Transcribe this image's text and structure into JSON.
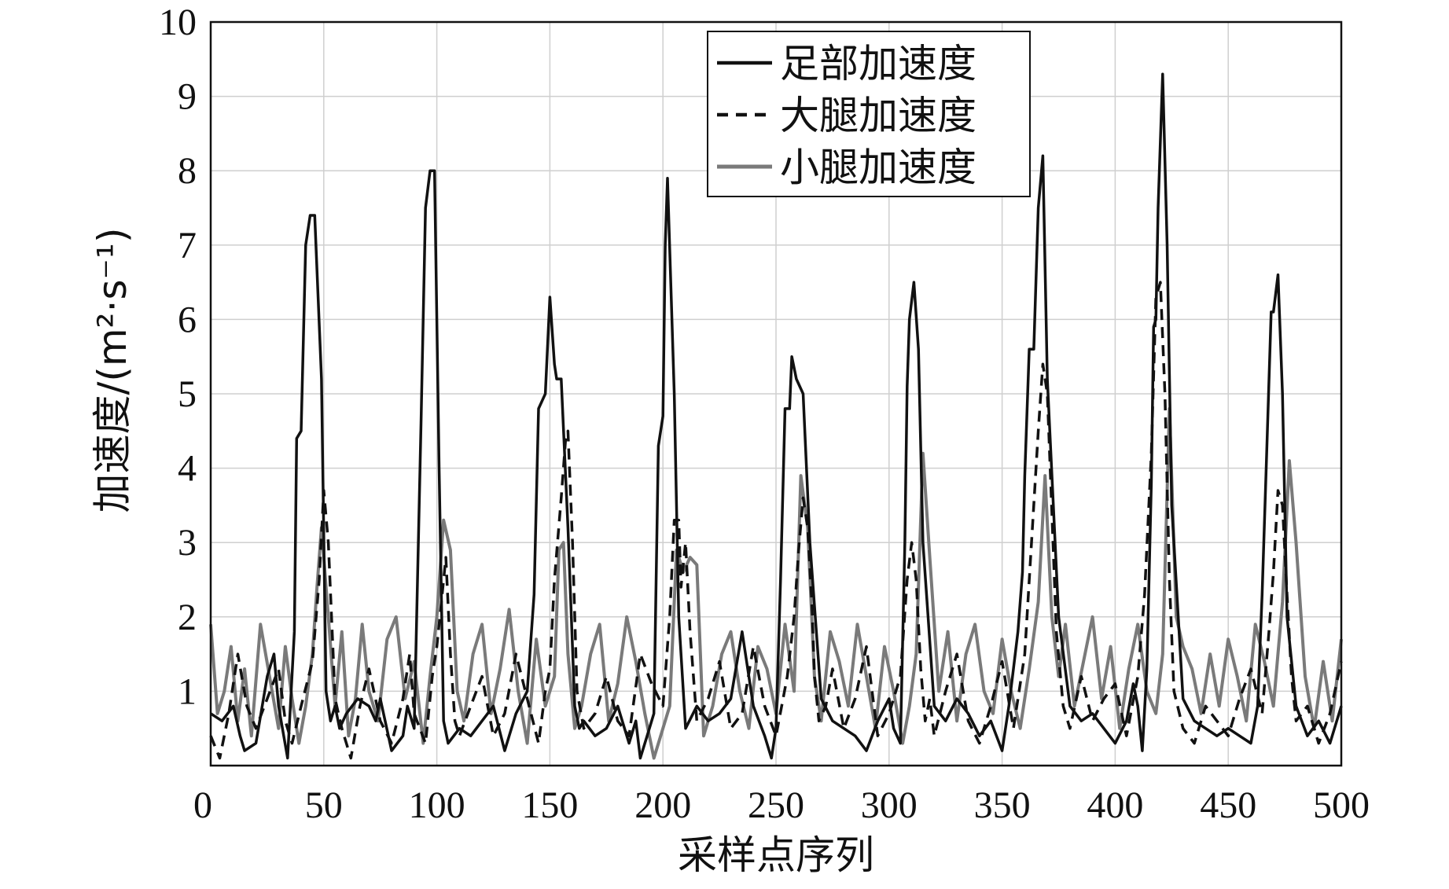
{
  "chart_data": {
    "type": "line",
    "xlabel": "采样点序列",
    "ylabel": "加速度/(m²·s⁻¹)",
    "xlim": [
      0,
      500
    ],
    "ylim": [
      0,
      10
    ],
    "xticks": [
      "0",
      "50",
      "100",
      "150",
      "200",
      "250",
      "300",
      "350",
      "400",
      "450",
      "500"
    ],
    "yticks": [
      "1",
      "2",
      "3",
      "4",
      "5",
      "6",
      "7",
      "8",
      "9",
      "10"
    ],
    "grid": true,
    "legend_position": "top-right",
    "series": [
      {
        "name": "足部加速度",
        "style": "solid",
        "color": "#111111",
        "x": [
          0,
          5,
          10,
          13,
          15,
          20,
          25,
          28,
          30,
          34,
          37,
          38,
          40,
          42,
          44,
          46,
          49,
          51,
          53,
          55,
          57,
          60,
          65,
          70,
          73,
          75,
          80,
          85,
          87,
          90,
          93,
          95,
          97,
          98,
          99,
          101,
          103,
          105,
          110,
          115,
          120,
          125,
          130,
          135,
          140,
          143,
          145,
          148,
          150,
          152,
          153,
          155,
          158,
          161,
          163,
          165,
          170,
          175,
          180,
          185,
          188,
          190,
          193,
          196,
          198,
          200,
          201,
          202,
          205,
          207,
          210,
          215,
          220,
          225,
          230,
          235,
          240,
          245,
          248,
          250,
          252,
          254,
          256,
          257,
          259,
          262,
          265,
          270,
          275,
          280,
          285,
          290,
          295,
          300,
          302,
          305,
          307,
          308,
          309,
          311,
          313,
          315,
          320,
          325,
          330,
          335,
          340,
          345,
          350,
          353,
          355,
          357,
          359,
          360,
          362,
          364,
          366,
          368,
          370,
          375,
          380,
          385,
          390,
          395,
          400,
          405,
          408,
          410,
          412,
          414,
          416,
          417,
          418,
          419,
          421,
          423,
          425,
          430,
          435,
          440,
          445,
          450,
          455,
          460,
          463,
          465,
          467,
          469,
          470,
          472,
          474,
          476,
          480,
          485,
          490,
          495,
          500
        ],
        "values": [
          0.7,
          0.6,
          0.8,
          0.4,
          0.2,
          0.3,
          1.2,
          1.5,
          0.8,
          0.1,
          1.8,
          4.4,
          4.5,
          7.0,
          7.4,
          7.4,
          5.2,
          1.0,
          0.6,
          0.8,
          0.5,
          0.7,
          0.9,
          0.8,
          0.6,
          0.9,
          0.2,
          0.4,
          0.8,
          0.5,
          4.6,
          7.5,
          8.0,
          8.0,
          8.0,
          4.0,
          0.6,
          0.3,
          0.5,
          0.4,
          0.6,
          0.8,
          0.2,
          0.7,
          1.0,
          2.3,
          4.8,
          5.0,
          6.3,
          5.4,
          5.2,
          5.2,
          3.2,
          0.8,
          0.5,
          0.6,
          0.4,
          0.5,
          0.8,
          0.3,
          0.6,
          0.1,
          0.4,
          0.7,
          4.3,
          4.7,
          7.0,
          7.9,
          5.0,
          2.0,
          0.5,
          0.8,
          0.6,
          0.7,
          0.9,
          1.8,
          0.8,
          0.4,
          0.1,
          0.5,
          2.5,
          4.8,
          4.8,
          5.5,
          5.2,
          5.0,
          3.0,
          0.9,
          0.6,
          0.5,
          0.4,
          0.2,
          0.6,
          0.9,
          0.5,
          0.3,
          3.0,
          5.1,
          6.0,
          6.5,
          5.6,
          3.0,
          0.8,
          0.6,
          0.9,
          0.7,
          0.4,
          0.6,
          0.2,
          0.8,
          1.3,
          1.8,
          2.6,
          3.9,
          5.6,
          5.6,
          7.5,
          8.2,
          5.2,
          2.0,
          0.8,
          0.6,
          0.7,
          0.5,
          0.3,
          0.6,
          1.1,
          0.8,
          0.2,
          1.3,
          3.8,
          5.9,
          6.0,
          7.5,
          9.3,
          7.0,
          3.5,
          0.9,
          0.6,
          0.5,
          0.4,
          0.5,
          0.4,
          0.3,
          0.8,
          2.3,
          4.2,
          6.1,
          6.1,
          6.6,
          5.0,
          2.0,
          0.8,
          0.4,
          0.6,
          0.3,
          0.8
        ]
      },
      {
        "name": "大腿加速度",
        "style": "dashed",
        "color": "#111111",
        "x": [
          0,
          4,
          8,
          12,
          16,
          20,
          25,
          30,
          33,
          36,
          40,
          45,
          48,
          50,
          52,
          55,
          58,
          62,
          66,
          70,
          75,
          80,
          85,
          88,
          90,
          95,
          98,
          100,
          102,
          104,
          106,
          108,
          110,
          115,
          120,
          125,
          130,
          135,
          140,
          145,
          148,
          150,
          152,
          155,
          157,
          158,
          160,
          162,
          165,
          170,
          175,
          180,
          185,
          190,
          195,
          200,
          203,
          205,
          207,
          208,
          210,
          212,
          215,
          220,
          225,
          230,
          235,
          240,
          245,
          250,
          255,
          258,
          260,
          262,
          264,
          266,
          267,
          269,
          272,
          275,
          280,
          285,
          290,
          295,
          300,
          305,
          308,
          310,
          312,
          314,
          316,
          318,
          320,
          325,
          330,
          335,
          340,
          345,
          350,
          355,
          360,
          363,
          366,
          368,
          370,
          372,
          374,
          377,
          380,
          385,
          390,
          395,
          400,
          405,
          410,
          413,
          416,
          418,
          420,
          422,
          424,
          426,
          430,
          435,
          440,
          445,
          450,
          455,
          460,
          465,
          468,
          470,
          472,
          474,
          476,
          478,
          480,
          485,
          490,
          495,
          500
        ],
        "values": [
          0.4,
          0.1,
          0.7,
          1.5,
          0.8,
          0.5,
          0.9,
          1.3,
          0.6,
          0.3,
          0.8,
          1.4,
          2.5,
          3.7,
          3.0,
          0.9,
          0.5,
          0.1,
          0.8,
          1.3,
          0.6,
          0.3,
          0.9,
          1.5,
          0.7,
          0.3,
          1.2,
          1.6,
          2.2,
          2.8,
          1.5,
          0.6,
          0.4,
          0.8,
          1.2,
          0.4,
          0.7,
          1.5,
          0.9,
          0.3,
          1.0,
          1.3,
          2.5,
          3.6,
          4.4,
          4.5,
          3.0,
          1.0,
          0.5,
          0.7,
          1.2,
          0.6,
          0.4,
          1.5,
          1.1,
          0.8,
          2.0,
          3.3,
          3.3,
          2.4,
          3.0,
          1.8,
          0.6,
          0.9,
          1.4,
          0.5,
          0.7,
          1.6,
          0.8,
          0.4,
          1.2,
          2.0,
          2.9,
          3.6,
          3.2,
          2.1,
          1.2,
          0.6,
          0.8,
          1.3,
          0.5,
          0.9,
          1.6,
          0.4,
          0.7,
          1.2,
          2.5,
          3.0,
          2.5,
          1.3,
          0.6,
          0.9,
          0.4,
          1.0,
          1.5,
          0.6,
          0.3,
          0.8,
          1.4,
          0.5,
          1.5,
          3.0,
          4.5,
          5.4,
          5.0,
          3.4,
          1.8,
          0.8,
          0.5,
          1.2,
          0.6,
          0.9,
          1.1,
          0.4,
          1.2,
          2.3,
          4.2,
          6.3,
          6.5,
          5.0,
          2.5,
          1.0,
          0.5,
          0.3,
          0.8,
          0.6,
          0.4,
          0.9,
          1.3,
          0.7,
          1.8,
          2.6,
          3.7,
          3.5,
          2.3,
          1.2,
          0.6,
          0.8,
          0.3,
          0.7,
          1.4
        ]
      },
      {
        "name": "小腿加速度",
        "style": "solid",
        "color": "#7a7a7a",
        "x": [
          0,
          3,
          6,
          9,
          12,
          15,
          18,
          22,
          26,
          30,
          33,
          36,
          39,
          42,
          45,
          47,
          49,
          52,
          55,
          58,
          61,
          64,
          67,
          70,
          74,
          78,
          82,
          86,
          90,
          94,
          97,
          100,
          103,
          106,
          109,
          112,
          116,
          120,
          124,
          128,
          132,
          136,
          140,
          144,
          148,
          152,
          154,
          156,
          158,
          161,
          164,
          168,
          172,
          176,
          180,
          184,
          188,
          192,
          196,
          200,
          203,
          206,
          209,
          212,
          215,
          218,
          222,
          226,
          230,
          234,
          238,
          242,
          246,
          250,
          254,
          258,
          261,
          264,
          267,
          270,
          274,
          278,
          282,
          286,
          290,
          294,
          298,
          302,
          306,
          309,
          312,
          315,
          318,
          322,
          326,
          330,
          334,
          338,
          342,
          346,
          350,
          354,
          358,
          362,
          366,
          369,
          372,
          375,
          378,
          382,
          386,
          390,
          394,
          398,
          402,
          406,
          410,
          414,
          418,
          421,
          424,
          427,
          430,
          434,
          438,
          442,
          446,
          450,
          454,
          458,
          462,
          466,
          470,
          474,
          477,
          480,
          484,
          488,
          492,
          496,
          500
        ],
        "values": [
          1.9,
          0.7,
          1.0,
          1.6,
          0.6,
          1.3,
          0.4,
          1.9,
          1.2,
          0.5,
          1.6,
          0.9,
          0.3,
          0.8,
          1.5,
          2.4,
          3.2,
          2.0,
          0.8,
          1.8,
          0.4,
          0.9,
          1.9,
          1.0,
          0.6,
          1.7,
          2.0,
          0.9,
          1.4,
          0.3,
          1.2,
          2.0,
          3.3,
          2.9,
          1.0,
          0.6,
          1.5,
          1.9,
          0.7,
          1.3,
          2.1,
          1.0,
          0.3,
          1.7,
          0.8,
          1.2,
          2.9,
          3.0,
          1.5,
          0.5,
          0.8,
          1.5,
          1.9,
          0.6,
          1.1,
          2.0,
          1.4,
          0.7,
          0.1,
          0.5,
          0.8,
          2.9,
          2.6,
          2.8,
          2.7,
          0.4,
          0.8,
          1.5,
          1.8,
          1.0,
          0.5,
          1.6,
          1.3,
          0.7,
          1.9,
          1.0,
          3.9,
          3.2,
          1.2,
          0.6,
          1.8,
          1.4,
          0.8,
          1.9,
          1.2,
          0.5,
          1.6,
          1.0,
          0.3,
          0.8,
          1.5,
          4.2,
          2.8,
          1.0,
          1.8,
          0.6,
          1.5,
          1.9,
          1.0,
          0.7,
          1.7,
          1.0,
          0.5,
          1.3,
          2.2,
          3.9,
          2.0,
          1.2,
          1.9,
          0.8,
          1.4,
          2.0,
          0.9,
          1.6,
          0.5,
          1.3,
          1.9,
          1.0,
          0.7,
          1.5,
          4.8,
          2.0,
          1.6,
          1.3,
          0.7,
          1.5,
          0.8,
          1.7,
          1.2,
          0.6,
          1.9,
          1.4,
          0.8,
          2.2,
          4.1,
          3.0,
          1.2,
          0.5,
          1.4,
          0.6,
          1.7
        ]
      }
    ]
  }
}
